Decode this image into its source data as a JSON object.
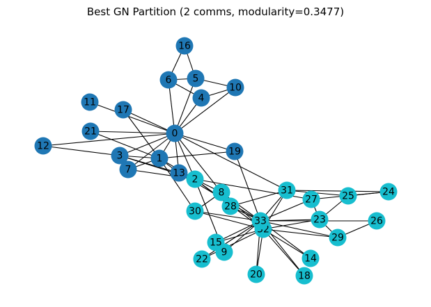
{
  "title": "Best GN Partition (2 comms, modularity=0.3477)",
  "colors": {
    "community_0": "#1f77b4",
    "community_1": "#17becf",
    "edge": "#000000"
  },
  "nodes": [
    {
      "id": "0",
      "community": 0
    },
    {
      "id": "1",
      "community": 0
    },
    {
      "id": "3",
      "community": 0
    },
    {
      "id": "4",
      "community": 0
    },
    {
      "id": "5",
      "community": 0
    },
    {
      "id": "6",
      "community": 0
    },
    {
      "id": "7",
      "community": 0
    },
    {
      "id": "10",
      "community": 0
    },
    {
      "id": "11",
      "community": 0
    },
    {
      "id": "12",
      "community": 0
    },
    {
      "id": "13",
      "community": 0
    },
    {
      "id": "16",
      "community": 0
    },
    {
      "id": "17",
      "community": 0
    },
    {
      "id": "19",
      "community": 0
    },
    {
      "id": "21",
      "community": 0
    },
    {
      "id": "2",
      "community": 1
    },
    {
      "id": "8",
      "community": 1
    },
    {
      "id": "9",
      "community": 1
    },
    {
      "id": "14",
      "community": 1
    },
    {
      "id": "15",
      "community": 1
    },
    {
      "id": "18",
      "community": 1
    },
    {
      "id": "20",
      "community": 1
    },
    {
      "id": "22",
      "community": 1
    },
    {
      "id": "23",
      "community": 1
    },
    {
      "id": "24",
      "community": 1
    },
    {
      "id": "25",
      "community": 1
    },
    {
      "id": "26",
      "community": 1
    },
    {
      "id": "27",
      "community": 1
    },
    {
      "id": "28",
      "community": 1
    },
    {
      "id": "29",
      "community": 1
    },
    {
      "id": "30",
      "community": 1
    },
    {
      "id": "31",
      "community": 1
    },
    {
      "id": "32",
      "community": 1
    },
    {
      "id": "33",
      "community": 1
    }
  ],
  "edges": [
    [
      "0",
      "1"
    ],
    [
      "0",
      "2"
    ],
    [
      "0",
      "3"
    ],
    [
      "0",
      "4"
    ],
    [
      "0",
      "5"
    ],
    [
      "0",
      "6"
    ],
    [
      "0",
      "7"
    ],
    [
      "0",
      "8"
    ],
    [
      "0",
      "10"
    ],
    [
      "0",
      "11"
    ],
    [
      "0",
      "12"
    ],
    [
      "0",
      "13"
    ],
    [
      "0",
      "17"
    ],
    [
      "0",
      "19"
    ],
    [
      "0",
      "21"
    ],
    [
      "0",
      "31"
    ],
    [
      "1",
      "2"
    ],
    [
      "1",
      "3"
    ],
    [
      "1",
      "7"
    ],
    [
      "1",
      "13"
    ],
    [
      "1",
      "17"
    ],
    [
      "1",
      "19"
    ],
    [
      "1",
      "21"
    ],
    [
      "1",
      "30"
    ],
    [
      "2",
      "3"
    ],
    [
      "2",
      "7"
    ],
    [
      "2",
      "8"
    ],
    [
      "2",
      "9"
    ],
    [
      "2",
      "13"
    ],
    [
      "2",
      "27"
    ],
    [
      "2",
      "28"
    ],
    [
      "2",
      "32"
    ],
    [
      "3",
      "7"
    ],
    [
      "3",
      "12"
    ],
    [
      "3",
      "13"
    ],
    [
      "4",
      "6"
    ],
    [
      "4",
      "10"
    ],
    [
      "5",
      "6"
    ],
    [
      "5",
      "10"
    ],
    [
      "5",
      "16"
    ],
    [
      "6",
      "16"
    ],
    [
      "8",
      "30"
    ],
    [
      "8",
      "32"
    ],
    [
      "8",
      "33"
    ],
    [
      "9",
      "33"
    ],
    [
      "13",
      "33"
    ],
    [
      "14",
      "32"
    ],
    [
      "14",
      "33"
    ],
    [
      "15",
      "32"
    ],
    [
      "15",
      "33"
    ],
    [
      "18",
      "32"
    ],
    [
      "18",
      "33"
    ],
    [
      "19",
      "33"
    ],
    [
      "20",
      "32"
    ],
    [
      "20",
      "33"
    ],
    [
      "22",
      "32"
    ],
    [
      "22",
      "33"
    ],
    [
      "23",
      "25"
    ],
    [
      "23",
      "27"
    ],
    [
      "23",
      "29"
    ],
    [
      "23",
      "32"
    ],
    [
      "23",
      "33"
    ],
    [
      "24",
      "25"
    ],
    [
      "24",
      "27"
    ],
    [
      "24",
      "31"
    ],
    [
      "25",
      "31"
    ],
    [
      "26",
      "29"
    ],
    [
      "26",
      "33"
    ],
    [
      "27",
      "33"
    ],
    [
      "28",
      "31"
    ],
    [
      "28",
      "33"
    ],
    [
      "29",
      "32"
    ],
    [
      "29",
      "33"
    ],
    [
      "30",
      "32"
    ],
    [
      "30",
      "33"
    ],
    [
      "31",
      "32"
    ],
    [
      "31",
      "33"
    ],
    [
      "32",
      "33"
    ]
  ]
}
